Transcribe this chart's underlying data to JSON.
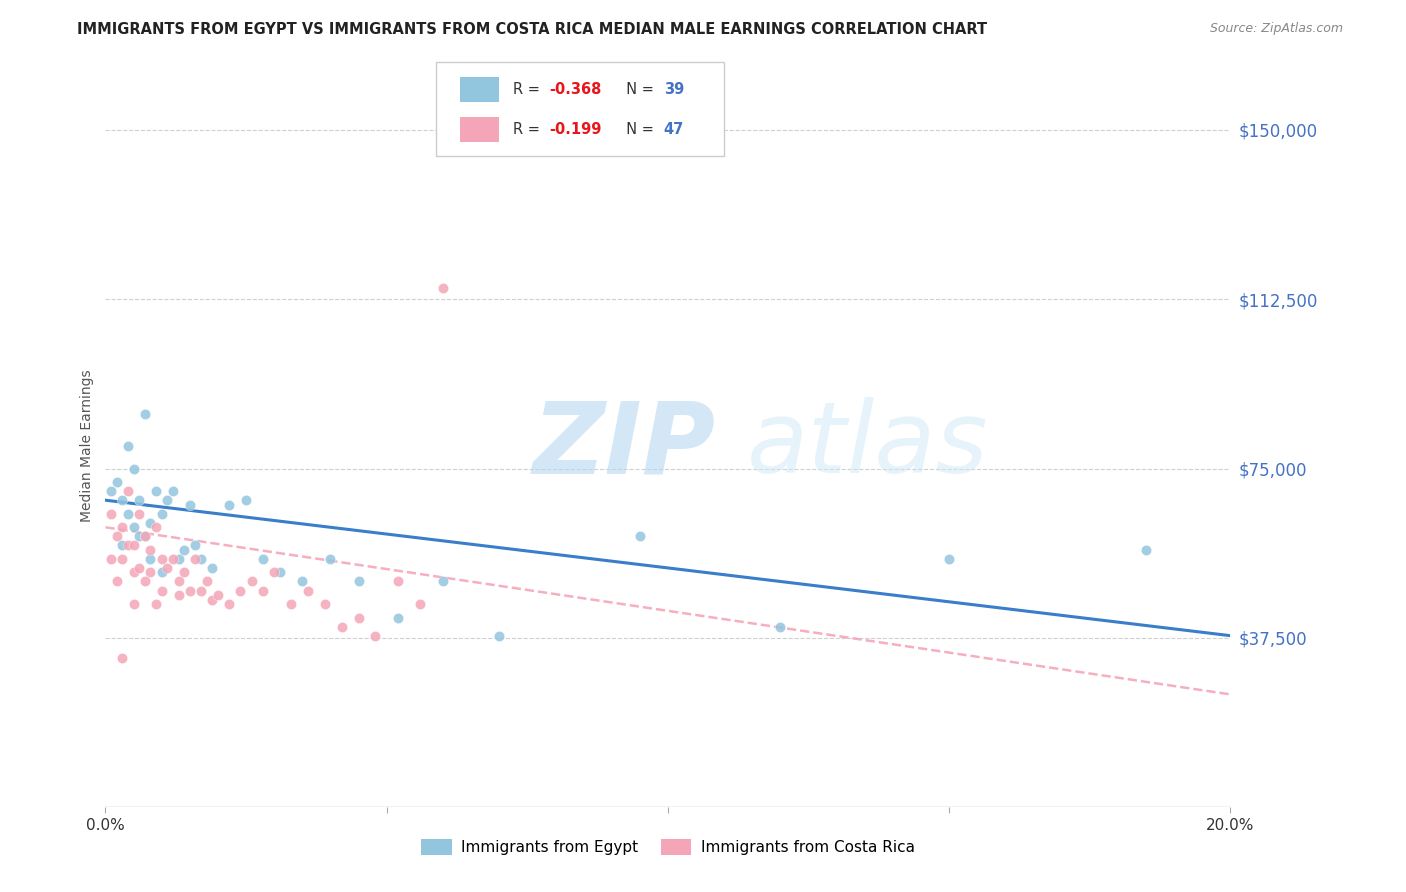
{
  "title": "IMMIGRANTS FROM EGYPT VS IMMIGRANTS FROM COSTA RICA MEDIAN MALE EARNINGS CORRELATION CHART",
  "source": "Source: ZipAtlas.com",
  "ylabel": "Median Male Earnings",
  "xlim": [
    0.0,
    0.2
  ],
  "ylim": [
    0,
    160000
  ],
  "yticks": [
    0,
    37500,
    75000,
    112500,
    150000
  ],
  "ytick_labels": [
    "",
    "$37,500",
    "$75,000",
    "$112,500",
    "$150,000"
  ],
  "xticks": [
    0.0,
    0.05,
    0.1,
    0.15,
    0.2
  ],
  "xtick_labels": [
    "0.0%",
    "",
    "",
    "",
    "20.0%"
  ],
  "egypt_color": "#92c5de",
  "costa_rica_color": "#f4a6b8",
  "egypt_line_color": "#3a7dc9",
  "costa_rica_line_color": "#f4a6b8",
  "background_color": "#ffffff",
  "grid_color": "#d0d0d0",
  "title_color": "#222222",
  "ytick_color": "#4472c4",
  "watermark_color": "#cce5f5",
  "legend_label_egypt": "Immigrants from Egypt",
  "legend_label_costa_rica": "Immigrants from Costa Rica",
  "egypt_x": [
    0.001,
    0.002,
    0.003,
    0.003,
    0.004,
    0.004,
    0.005,
    0.005,
    0.006,
    0.006,
    0.007,
    0.007,
    0.008,
    0.008,
    0.009,
    0.01,
    0.01,
    0.011,
    0.012,
    0.013,
    0.014,
    0.015,
    0.016,
    0.017,
    0.019,
    0.022,
    0.025,
    0.028,
    0.031,
    0.035,
    0.04,
    0.045,
    0.052,
    0.06,
    0.07,
    0.095,
    0.12,
    0.15,
    0.185
  ],
  "egypt_y": [
    70000,
    72000,
    68000,
    58000,
    80000,
    65000,
    75000,
    62000,
    68000,
    60000,
    87000,
    60000,
    63000,
    55000,
    70000,
    65000,
    52000,
    68000,
    70000,
    55000,
    57000,
    67000,
    58000,
    55000,
    53000,
    67000,
    68000,
    55000,
    52000,
    50000,
    55000,
    50000,
    42000,
    50000,
    38000,
    60000,
    40000,
    55000,
    57000
  ],
  "costa_rica_x": [
    0.001,
    0.001,
    0.002,
    0.002,
    0.003,
    0.003,
    0.004,
    0.004,
    0.005,
    0.005,
    0.005,
    0.006,
    0.006,
    0.007,
    0.007,
    0.008,
    0.008,
    0.009,
    0.009,
    0.01,
    0.01,
    0.011,
    0.012,
    0.013,
    0.013,
    0.014,
    0.015,
    0.016,
    0.017,
    0.018,
    0.019,
    0.02,
    0.022,
    0.024,
    0.026,
    0.028,
    0.03,
    0.033,
    0.036,
    0.039,
    0.042,
    0.045,
    0.048,
    0.052,
    0.056,
    0.06,
    0.003
  ],
  "costa_rica_y": [
    65000,
    55000,
    60000,
    50000,
    62000,
    55000,
    70000,
    58000,
    58000,
    52000,
    45000,
    65000,
    53000,
    60000,
    50000,
    57000,
    52000,
    62000,
    45000,
    55000,
    48000,
    53000,
    55000,
    50000,
    47000,
    52000,
    48000,
    55000,
    48000,
    50000,
    46000,
    47000,
    45000,
    48000,
    50000,
    48000,
    52000,
    45000,
    48000,
    45000,
    40000,
    42000,
    38000,
    50000,
    45000,
    115000,
    33000
  ]
}
